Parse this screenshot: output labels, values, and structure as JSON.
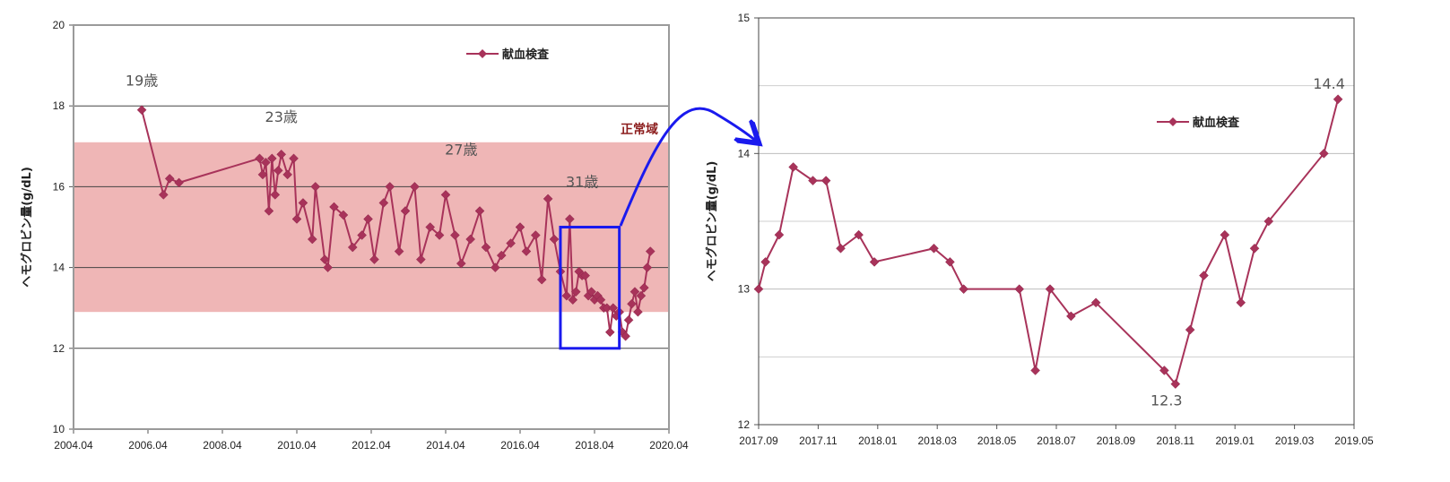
{
  "chart_data": [
    {
      "type": "line",
      "title": "",
      "ylabel": "ヘモグロビン量(g/dL)",
      "xlabel": "",
      "xlim": [
        "2004.04",
        "2020.04"
      ],
      "ylim": [
        10,
        20
      ],
      "x_ticks": [
        "2004.04",
        "2006.04",
        "2008.04",
        "2010.04",
        "2012.04",
        "2014.04",
        "2016.04",
        "2018.04",
        "2020.04"
      ],
      "y_ticks": [
        "10",
        "12",
        "14",
        "16",
        "18",
        "20"
      ],
      "grid": "horizontal",
      "legend_position": "top-right",
      "normal_range": {
        "label": "正常域",
        "ymin": 12.9,
        "ymax": 17.1,
        "color": "#efb6b6"
      },
      "annotations": [
        {
          "text": "19歳",
          "x": "2006.02",
          "y": 18.5
        },
        {
          "text": "23歳",
          "x": "2009.11",
          "y": 17.6
        },
        {
          "text": "27歳",
          "x": "2014.09",
          "y": 16.8
        },
        {
          "text": "31歳",
          "x": "2017.12",
          "y": 16.0
        }
      ],
      "highlight_box": {
        "x0": "2017.05",
        "x1": "2018.12",
        "y0": 12.0,
        "y1": 15.0,
        "color": "#1a1aee"
      },
      "series": [
        {
          "name": "献血検査",
          "color": "#a8335a",
          "points": [
            {
              "x": "2006.02",
              "y": 17.9
            },
            {
              "x": "2006.09",
              "y": 15.8
            },
            {
              "x": "2006.11",
              "y": 16.2
            },
            {
              "x": "2007.02",
              "y": 16.1
            },
            {
              "x": "2009.04",
              "y": 16.7
            },
            {
              "x": "2009.05",
              "y": 16.3
            },
            {
              "x": "2009.06",
              "y": 16.6
            },
            {
              "x": "2009.07",
              "y": 15.4
            },
            {
              "x": "2009.08",
              "y": 16.7
            },
            {
              "x": "2009.09",
              "y": 15.8
            },
            {
              "x": "2009.10",
              "y": 16.4
            },
            {
              "x": "2009.11",
              "y": 16.8
            },
            {
              "x": "2010.01",
              "y": 16.3
            },
            {
              "x": "2010.03",
              "y": 16.7
            },
            {
              "x": "2010.04",
              "y": 15.2
            },
            {
              "x": "2010.06",
              "y": 15.6
            },
            {
              "x": "2010.09",
              "y": 14.7
            },
            {
              "x": "2010.10",
              "y": 16.0
            },
            {
              "x": "2011.01",
              "y": 14.2
            },
            {
              "x": "2011.02",
              "y": 14.0
            },
            {
              "x": "2011.04",
              "y": 15.5
            },
            {
              "x": "2011.07",
              "y": 15.3
            },
            {
              "x": "2011.10",
              "y": 14.5
            },
            {
              "x": "2012.01",
              "y": 14.8
            },
            {
              "x": "2012.03",
              "y": 15.2
            },
            {
              "x": "2012.05",
              "y": 14.2
            },
            {
              "x": "2012.08",
              "y": 15.6
            },
            {
              "x": "2012.10",
              "y": 16.0
            },
            {
              "x": "2013.01",
              "y": 14.4
            },
            {
              "x": "2013.03",
              "y": 15.4
            },
            {
              "x": "2013.06",
              "y": 16.0
            },
            {
              "x": "2013.08",
              "y": 14.2
            },
            {
              "x": "2013.11",
              "y": 15.0
            },
            {
              "x": "2014.02",
              "y": 14.8
            },
            {
              "x": "2014.04",
              "y": 15.8
            },
            {
              "x": "2014.07",
              "y": 14.8
            },
            {
              "x": "2014.09",
              "y": 14.1
            },
            {
              "x": "2014.12",
              "y": 14.7
            },
            {
              "x": "2015.03",
              "y": 15.4
            },
            {
              "x": "2015.05",
              "y": 14.5
            },
            {
              "x": "2015.08",
              "y": 14.0
            },
            {
              "x": "2015.10",
              "y": 14.3
            },
            {
              "x": "2016.01",
              "y": 14.6
            },
            {
              "x": "2016.04",
              "y": 15.0
            },
            {
              "x": "2016.06",
              "y": 14.4
            },
            {
              "x": "2016.09",
              "y": 14.8
            },
            {
              "x": "2016.11",
              "y": 13.7
            },
            {
              "x": "2017.01",
              "y": 15.7
            },
            {
              "x": "2017.03",
              "y": 14.7
            },
            {
              "x": "2017.05",
              "y": 13.9
            },
            {
              "x": "2017.07",
              "y": 13.3
            },
            {
              "x": "2017.08",
              "y": 15.2
            },
            {
              "x": "2017.09",
              "y": 13.2
            },
            {
              "x": "2017.10",
              "y": 13.4
            },
            {
              "x": "2017.11",
              "y": 13.9
            },
            {
              "x": "2017.12",
              "y": 13.8
            },
            {
              "x": "2018.01",
              "y": 13.8
            },
            {
              "x": "2018.02",
              "y": 13.3
            },
            {
              "x": "2018.03",
              "y": 13.4
            },
            {
              "x": "2018.04",
              "y": 13.2
            },
            {
              "x": "2018.05",
              "y": 13.3
            },
            {
              "x": "2018.06",
              "y": 13.2
            },
            {
              "x": "2018.07",
              "y": 13.0
            },
            {
              "x": "2018.08",
              "y": 13.0
            },
            {
              "x": "2018.09",
              "y": 12.4
            },
            {
              "x": "2018.10",
              "y": 13.0
            },
            {
              "x": "2018.11",
              "y": 12.8
            },
            {
              "x": "2018.12",
              "y": 12.9
            },
            {
              "x": "2019.01",
              "y": 12.4
            },
            {
              "x": "2019.02",
              "y": 12.3
            },
            {
              "x": "2019.03",
              "y": 12.7
            },
            {
              "x": "2019.04",
              "y": 13.1
            },
            {
              "x": "2019.05",
              "y": 13.4
            },
            {
              "x": "2019.06",
              "y": 12.9
            },
            {
              "x": "2019.07",
              "y": 13.3
            },
            {
              "x": "2019.08",
              "y": 13.5
            },
            {
              "x": "2019.09",
              "y": 14.0
            },
            {
              "x": "2019.10",
              "y": 14.4
            }
          ]
        }
      ]
    },
    {
      "type": "line",
      "title": "",
      "ylabel": "ヘモグロビン量(g/dL)",
      "xlabel": "",
      "xlim": [
        "2017.09",
        "2019.05"
      ],
      "ylim": [
        12,
        15
      ],
      "x_ticks": [
        "2017.09",
        "2017.11",
        "2018.01",
        "2018.03",
        "2018.05",
        "2018.07",
        "2018.09",
        "2018.11",
        "2019.01",
        "2019.03",
        "2019.05"
      ],
      "y_ticks": [
        "12",
        "13",
        "14",
        "15"
      ],
      "grid": "horizontal",
      "legend_position": "top-right",
      "data_labels": [
        {
          "text": "14.4",
          "x": "2019.04.15",
          "y": 14.4
        },
        {
          "text": "12.3",
          "x": "2018.11.01",
          "y": 12.3
        }
      ],
      "series": [
        {
          "name": "献血検査",
          "color": "#a8335a",
          "points": [
            {
              "x": "2017.09.01",
              "y": 13.0
            },
            {
              "x": "2017.09.08",
              "y": 13.2
            },
            {
              "x": "2017.09.22",
              "y": 13.4
            },
            {
              "x": "2017.10.06",
              "y": 13.9
            },
            {
              "x": "2017.10.26",
              "y": 13.8
            },
            {
              "x": "2017.11.09",
              "y": 13.8
            },
            {
              "x": "2017.11.24",
              "y": 13.3
            },
            {
              "x": "2017.12.12",
              "y": 13.4
            },
            {
              "x": "2017.12.28",
              "y": 13.2
            },
            {
              "x": "2018.02.28",
              "y": 13.3
            },
            {
              "x": "2018.03.14",
              "y": 13.2
            },
            {
              "x": "2018.03.28",
              "y": 13.0
            },
            {
              "x": "2018.05.24",
              "y": 13.0
            },
            {
              "x": "2018.06.10",
              "y": 12.4
            },
            {
              "x": "2018.06.25",
              "y": 13.0
            },
            {
              "x": "2018.07.16",
              "y": 12.8
            },
            {
              "x": "2018.08.11",
              "y": 12.9
            },
            {
              "x": "2018.10.20",
              "y": 12.4
            },
            {
              "x": "2018.11.01",
              "y": 12.3
            },
            {
              "x": "2018.11.16",
              "y": 12.7
            },
            {
              "x": "2018.11.30",
              "y": 13.1
            },
            {
              "x": "2018.12.21",
              "y": 13.4
            },
            {
              "x": "2019.01.07",
              "y": 12.9
            },
            {
              "x": "2019.01.21",
              "y": 13.3
            },
            {
              "x": "2019.02.05",
              "y": 13.5
            },
            {
              "x": "2019.03.31",
              "y": 14.0
            },
            {
              "x": "2019.04.15",
              "y": 14.4
            }
          ]
        }
      ]
    }
  ]
}
